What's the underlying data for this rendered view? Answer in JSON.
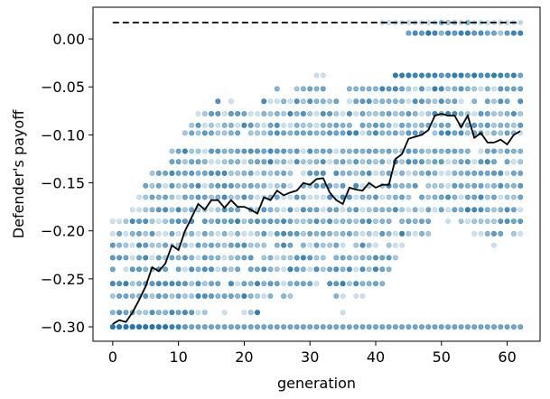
{
  "chart_data": {
    "type": "scatter",
    "xlabel": "generation",
    "ylabel": "Defender's payoff",
    "xlim": [
      -3,
      65
    ],
    "ylim": [
      -0.315,
      0.033
    ],
    "x_ticks": [
      0,
      10,
      20,
      30,
      40,
      50,
      60
    ],
    "y_ticks": [
      0.0,
      -0.05,
      -0.1,
      -0.15,
      -0.2,
      -0.25,
      -0.3
    ],
    "y_tick_labels": [
      "0.00",
      "−0.05",
      "−0.10",
      "−0.15",
      "−0.20",
      "−0.25",
      "−0.30"
    ],
    "grid": false,
    "colors": {
      "scatter": "#1f77b4",
      "line": "#000000",
      "reference": "#000000"
    },
    "reference_line": {
      "y": 0.017,
      "x_range": [
        0,
        62
      ],
      "style": "dashed"
    },
    "mean_line": {
      "x": [
        0,
        1,
        2,
        3,
        4,
        5,
        6,
        7,
        8,
        9,
        10,
        11,
        12,
        13,
        14,
        15,
        16,
        17,
        18,
        19,
        20,
        21,
        22,
        23,
        24,
        25,
        26,
        27,
        28,
        29,
        30,
        31,
        32,
        33,
        34,
        35,
        36,
        37,
        38,
        39,
        40,
        41,
        42,
        43,
        44,
        45,
        46,
        47,
        48,
        49,
        50,
        51,
        52,
        53,
        54,
        55,
        56,
        57,
        58,
        59,
        60,
        61,
        62
      ],
      "y": [
        -0.297,
        -0.293,
        -0.295,
        -0.285,
        -0.272,
        -0.258,
        -0.238,
        -0.242,
        -0.234,
        -0.215,
        -0.22,
        -0.2,
        -0.186,
        -0.172,
        -0.178,
        -0.168,
        -0.168,
        -0.176,
        -0.168,
        -0.175,
        -0.175,
        -0.178,
        -0.182,
        -0.165,
        -0.168,
        -0.158,
        -0.163,
        -0.16,
        -0.158,
        -0.15,
        -0.152,
        -0.146,
        -0.145,
        -0.16,
        -0.168,
        -0.172,
        -0.155,
        -0.157,
        -0.158,
        -0.15,
        -0.155,
        -0.152,
        -0.152,
        -0.125,
        -0.12,
        -0.104,
        -0.102,
        -0.1,
        -0.095,
        -0.08,
        -0.078,
        -0.08,
        -0.08,
        -0.092,
        -0.08,
        -0.103,
        -0.098,
        -0.108,
        -0.108,
        -0.105,
        -0.11,
        -0.1,
        -0.096
      ]
    },
    "scatter_levels": [
      0.017,
      0.006,
      -0.038,
      -0.052,
      -0.065,
      -0.078,
      -0.09,
      -0.098,
      -0.117,
      -0.128,
      -0.14,
      -0.153,
      -0.165,
      -0.178,
      -0.19,
      -0.203,
      -0.215,
      -0.228,
      -0.24,
      -0.255,
      -0.268,
      -0.285,
      -0.3
    ],
    "scatter_spread": 0.105,
    "points_per_generation": 60
  }
}
